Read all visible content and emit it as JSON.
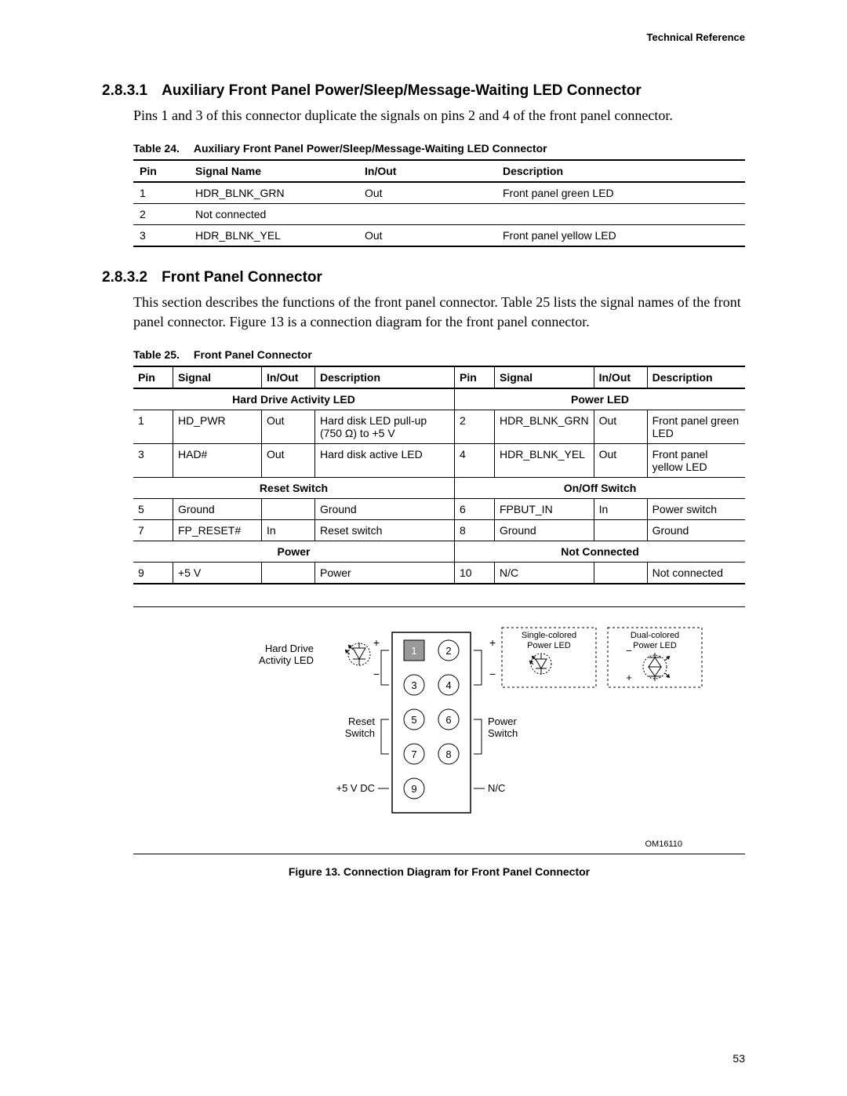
{
  "header": {
    "right": "Technical Reference"
  },
  "section1": {
    "num": "2.8.3.1",
    "title": "Auxiliary Front Panel Power/Sleep/Message-Waiting LED Connector",
    "body": "Pins 1 and 3 of this connector duplicate the signals on pins 2 and 4 of the front panel connector."
  },
  "table24": {
    "cap_label": "Table 24.",
    "cap_title": "Auxiliary Front Panel Power/Sleep/Message-Waiting LED Connector",
    "columns": [
      "Pin",
      "Signal Name",
      "In/Out",
      "Description"
    ],
    "col_widths": [
      "55px",
      "200px",
      "160px",
      "auto"
    ],
    "rows": [
      [
        "1",
        "HDR_BLNK_GRN",
        "Out",
        "Front panel green LED"
      ],
      [
        "2",
        "Not connected",
        "",
        ""
      ],
      [
        "3",
        "HDR_BLNK_YEL",
        "Out",
        "Front panel yellow LED"
      ]
    ]
  },
  "section2": {
    "num": "2.8.3.2",
    "title": "Front Panel Connector",
    "body": "This section describes the functions of the front panel connector.  Table 25 lists the signal names of the front panel connector.  Figure 13 is a connection diagram for the front panel connector."
  },
  "table25": {
    "cap_label": "Table 25.",
    "cap_title": "Front Panel Connector",
    "columns": [
      "Pin",
      "Signal",
      "In/Out",
      "Description",
      "Pin",
      "Signal",
      "In/Out",
      "Description"
    ],
    "col_widths": [
      "38px",
      "100px",
      "55px",
      "165px",
      "38px",
      "102px",
      "55px",
      "auto"
    ],
    "groups": [
      {
        "left_header": "Hard Drive Activity LED",
        "right_header": "Power LED",
        "rows": [
          [
            "1",
            "HD_PWR",
            "Out",
            "Hard disk LED pull-up (750 Ω) to +5 V",
            "2",
            "HDR_BLNK_GRN",
            "Out",
            "Front panel green LED"
          ],
          [
            "3",
            "HAD#",
            "Out",
            "Hard disk active LED",
            "4",
            "HDR_BLNK_YEL",
            "Out",
            "Front panel yellow LED"
          ]
        ]
      },
      {
        "left_header": "Reset Switch",
        "right_header": "On/Off Switch",
        "rows": [
          [
            "5",
            "Ground",
            "",
            "Ground",
            "6",
            "FPBUT_IN",
            "In",
            "Power switch"
          ],
          [
            "7",
            "FP_RESET#",
            "In",
            "Reset switch",
            "8",
            "Ground",
            "",
            "Ground"
          ]
        ]
      },
      {
        "left_header": "Power",
        "right_header": "Not Connected",
        "rows": [
          [
            "9",
            "+5 V",
            "",
            "Power",
            "10",
            "N/C",
            "",
            "Not connected"
          ]
        ]
      }
    ]
  },
  "figure": {
    "labels": {
      "hd_led_1": "Hard Drive",
      "hd_led_2": "Activity LED",
      "reset_1": "Reset",
      "reset_2": "Switch",
      "vdc": "+5 V DC",
      "power_1": "Power",
      "power_2": "Switch",
      "nc": "N/C",
      "single_1": "Single-colored",
      "single_2": "Power LED",
      "dual_1": "Dual-colored",
      "dual_2": "Power LED",
      "plus": "+",
      "minus": "−"
    },
    "pins": [
      "1",
      "2",
      "3",
      "4",
      "5",
      "6",
      "7",
      "8",
      "9"
    ],
    "om": "OM16110",
    "caption": "Figure 13.  Connection Diagram for Front Panel Connector",
    "colors": {
      "stroke": "#000000",
      "pin1_fill": "#999999",
      "circle_fill": "#ffffff",
      "bg": "#ffffff"
    }
  },
  "page_number": "53"
}
